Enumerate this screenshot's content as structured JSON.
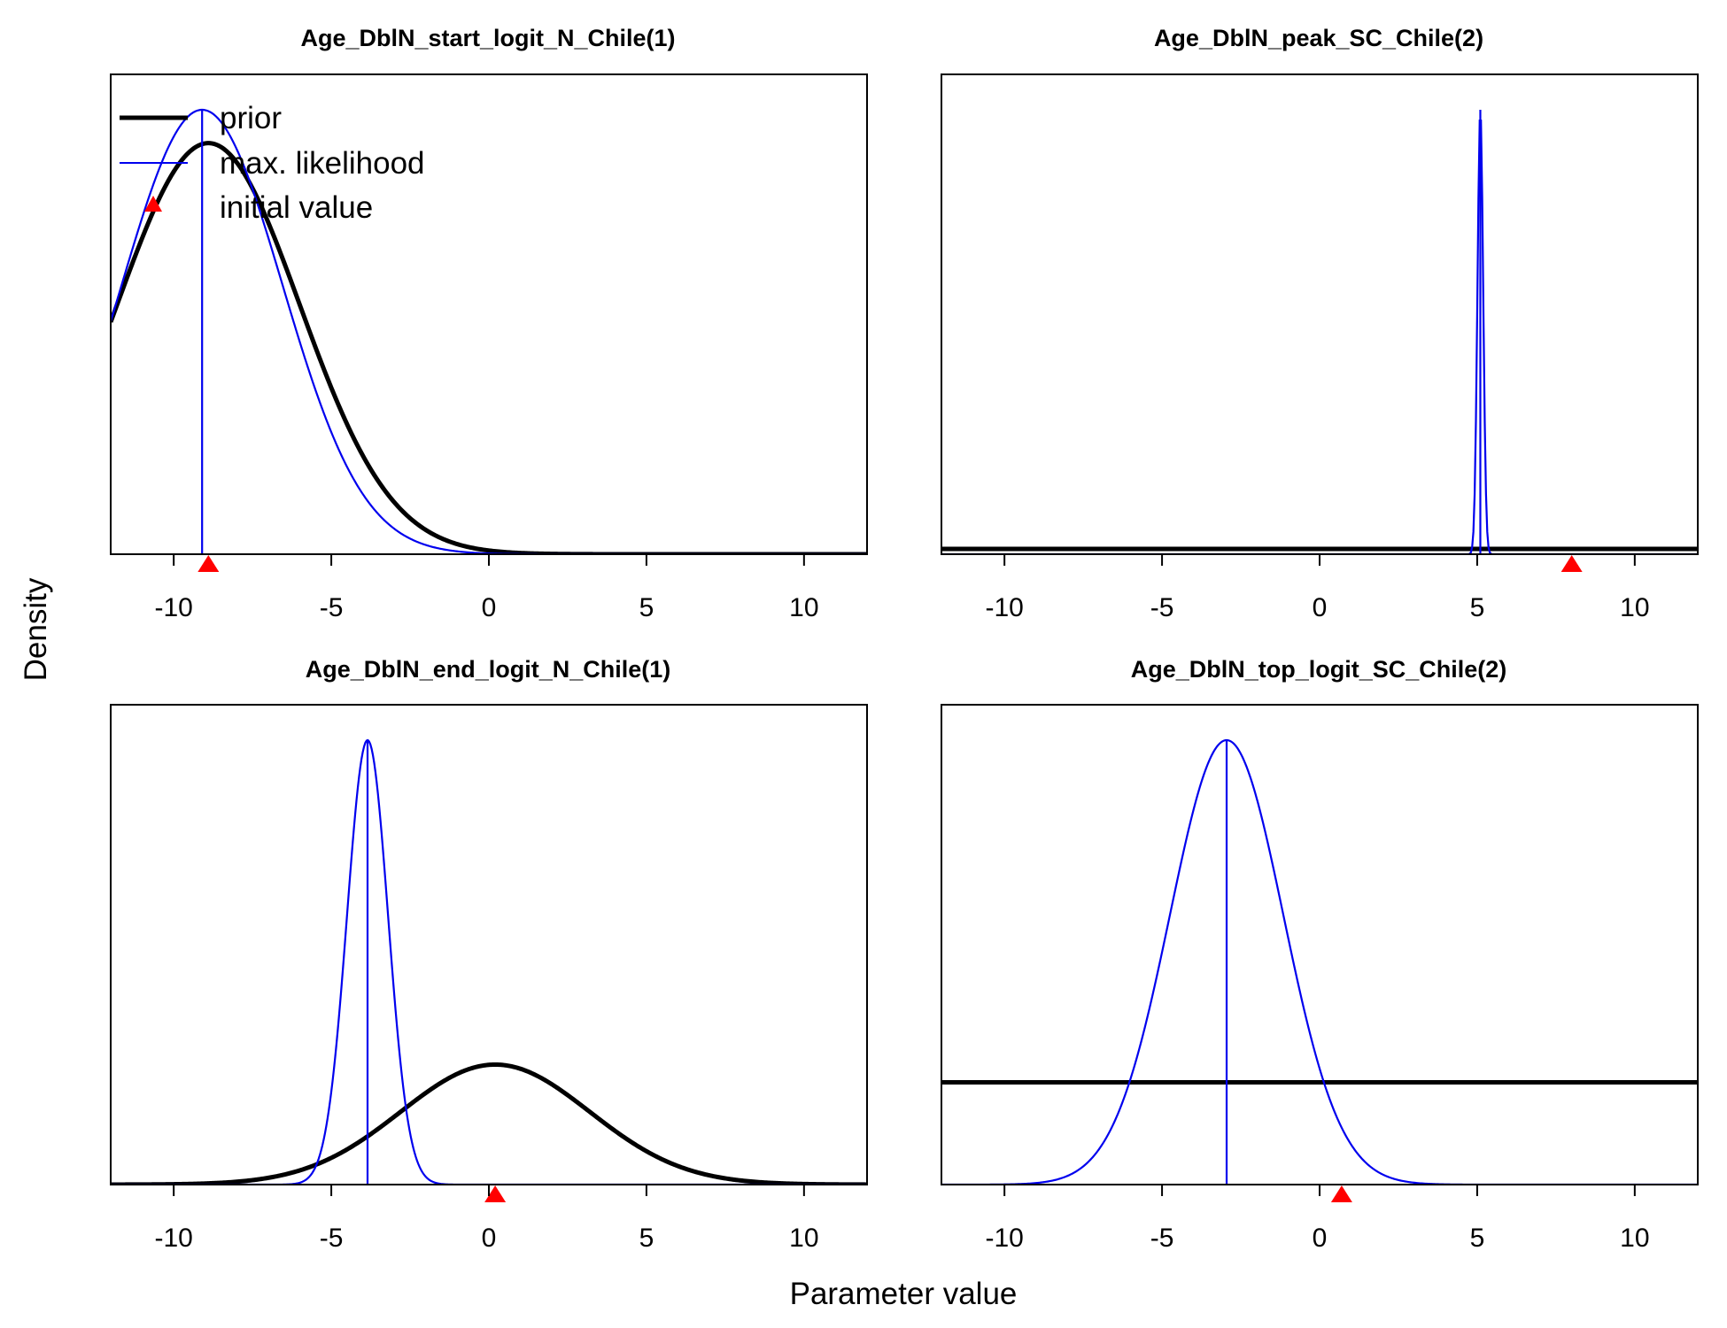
{
  "figure": {
    "ylabel": "Density",
    "xlabel": "Parameter value"
  },
  "legend": {
    "items": [
      {
        "label": "prior",
        "color": "#000000",
        "kind": "thick-line"
      },
      {
        "label": "max. likelihood",
        "color": "#0000ee",
        "kind": "thin-line"
      },
      {
        "label": "initial value",
        "color": "#ff0000",
        "kind": "triangle"
      }
    ],
    "placement": "top-left of first panel"
  },
  "chart_data": [
    {
      "type": "line",
      "title": "Age_DblN_start_logit_N_Chile(1)",
      "xlim": [
        -12,
        12
      ],
      "xticks": [
        -10,
        -5,
        0,
        5,
        10
      ],
      "prior": {
        "kind": "normal",
        "mean": -8.9,
        "sd": 2.9,
        "rel_peak": 0.925
      },
      "mle": {
        "kind": "normal",
        "mean": -9.1,
        "sd": 2.55,
        "rel_peak": 1.0,
        "value": -9.1
      },
      "initial_value": -8.9,
      "series": [
        {
          "name": "prior",
          "color": "#000000"
        },
        {
          "name": "max. likelihood",
          "color": "#0000ee"
        }
      ]
    },
    {
      "type": "line",
      "title": "Age_DblN_peak_SC_Chile(2)",
      "xlim": [
        -12,
        12
      ],
      "xticks": [
        -10,
        -5,
        0,
        5,
        10
      ],
      "prior": {
        "kind": "flat",
        "rel_level": 0.012
      },
      "mle": {
        "kind": "normal",
        "mean": 5.1,
        "sd": 0.09,
        "rel_peak": 1.0,
        "value": 5.1
      },
      "initial_value": 8.0,
      "series": [
        {
          "name": "prior",
          "color": "#000000"
        },
        {
          "name": "max. likelihood",
          "color": "#0000ee"
        }
      ]
    },
    {
      "type": "line",
      "title": "Age_DblN_end_logit_N_Chile(1)",
      "xlim": [
        -12,
        12
      ],
      "xticks": [
        -10,
        -5,
        0,
        5,
        10
      ],
      "prior": {
        "kind": "normal",
        "mean": 0.2,
        "sd": 3.0,
        "rel_peak": 0.27
      },
      "mle": {
        "kind": "normal",
        "mean": -3.85,
        "sd": 0.65,
        "rel_peak": 1.0,
        "value": -3.85
      },
      "initial_value": 0.2,
      "series": [
        {
          "name": "prior",
          "color": "#000000"
        },
        {
          "name": "max. likelihood",
          "color": "#0000ee"
        }
      ]
    },
    {
      "type": "line",
      "title": "Age_DblN_top_logit_SC_Chile(2)",
      "xlim": [
        -12,
        12
      ],
      "xticks": [
        -10,
        -5,
        0,
        5,
        10
      ],
      "prior": {
        "kind": "flat",
        "rel_level": 0.23
      },
      "mle": {
        "kind": "normal",
        "mean": -2.95,
        "sd": 1.8,
        "rel_peak": 1.0,
        "value": -2.95
      },
      "initial_value": 0.7,
      "series": [
        {
          "name": "prior",
          "color": "#000000"
        },
        {
          "name": "max. likelihood",
          "color": "#0000ee"
        }
      ]
    }
  ]
}
